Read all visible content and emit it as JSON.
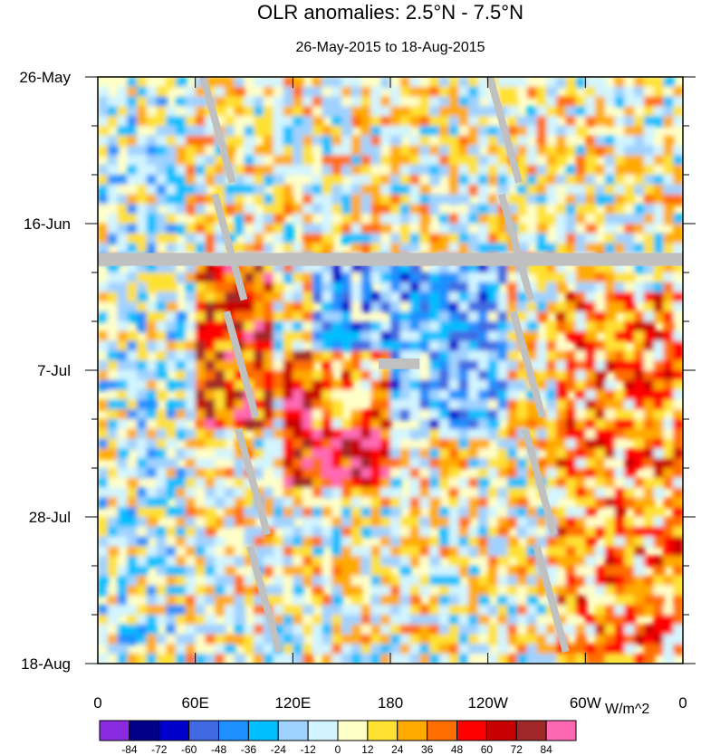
{
  "chart_data": {
    "type": "heatmap",
    "title": "OLR anomalies: 2.5°N - 7.5°N",
    "subtitle": "26-May-2015 to 18-Aug-2015",
    "x_ticks": [
      "0",
      "60E",
      "120E",
      "180",
      "120W",
      "60W",
      "0"
    ],
    "y_ticks": [
      "26-May",
      "16-Jun",
      "7-Jul",
      "28-Jul",
      "18-Aug"
    ],
    "colorbar": {
      "unit": "W/m^2",
      "labels": [
        "-84",
        "-72",
        "-60",
        "-48",
        "-36",
        "-24",
        "-12",
        "0",
        "12",
        "24",
        "36",
        "48",
        "60",
        "72",
        "84"
      ],
      "colors": [
        "#8a2be2",
        "#00008b",
        "#0000cd",
        "#4169e1",
        "#1e90ff",
        "#00bfff",
        "#a0d2ff",
        "#d2f5ff",
        "#ffffc8",
        "#ffe132",
        "#ffaa00",
        "#ff6e00",
        "#ff0000",
        "#c80000",
        "#a02828",
        "#ff69b4"
      ]
    },
    "missing_color": "#c0c0c0",
    "features": [
      {
        "name": "missing-data-row",
        "date": "19-Jun"
      },
      {
        "name": "positive-anomaly-core",
        "lon": "120E–150E",
        "period": "7-Jul to 20-Jul"
      },
      {
        "name": "negative-anomaly-band",
        "lon": "150E–120W",
        "period": "18-Jun to 7-Jul"
      }
    ]
  }
}
